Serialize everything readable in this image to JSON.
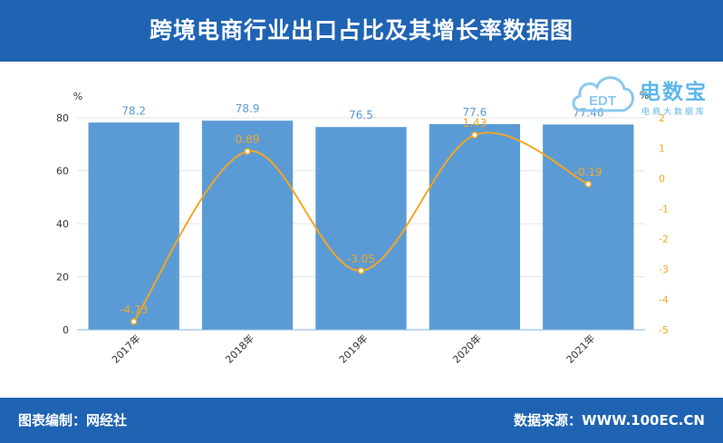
{
  "header": {
    "title": "跨境电商行业出口占比及其增长率数据图"
  },
  "footer": {
    "credit": "图表编制：网经社",
    "source": "数据来源：WWW.100EC.CN"
  },
  "logo": {
    "name": "电数宝",
    "subtitle": "电商大数据库",
    "mark": "EDT"
  },
  "colors": {
    "header_bg": "#1f63b3",
    "bar": "#5b9bd5",
    "line": "#f5a623",
    "bar_label": "#5b9bd5",
    "line_label": "#f5a623"
  },
  "chart_data": {
    "type": "bar",
    "categories": [
      "2017年",
      "2018年",
      "2019年",
      "2020年",
      "2021年"
    ],
    "series": [
      {
        "type": "bar",
        "axis": "left",
        "values": [
          78.2,
          78.9,
          76.5,
          77.6,
          77.46
        ]
      },
      {
        "type": "line",
        "axis": "right",
        "smooth": true,
        "values": [
          -4.73,
          0.89,
          -3.05,
          1.43,
          -0.19
        ]
      }
    ],
    "left_axis": {
      "unit": "%",
      "ylim": [
        0,
        80
      ],
      "ticks": [
        0,
        20,
        40,
        60,
        80
      ]
    },
    "right_axis": {
      "unit": "%",
      "ylim": [
        -5,
        2
      ],
      "ticks": [
        2,
        1,
        0,
        -1,
        -2,
        -3,
        -4,
        -5
      ]
    },
    "grid": true,
    "legend": "none"
  }
}
